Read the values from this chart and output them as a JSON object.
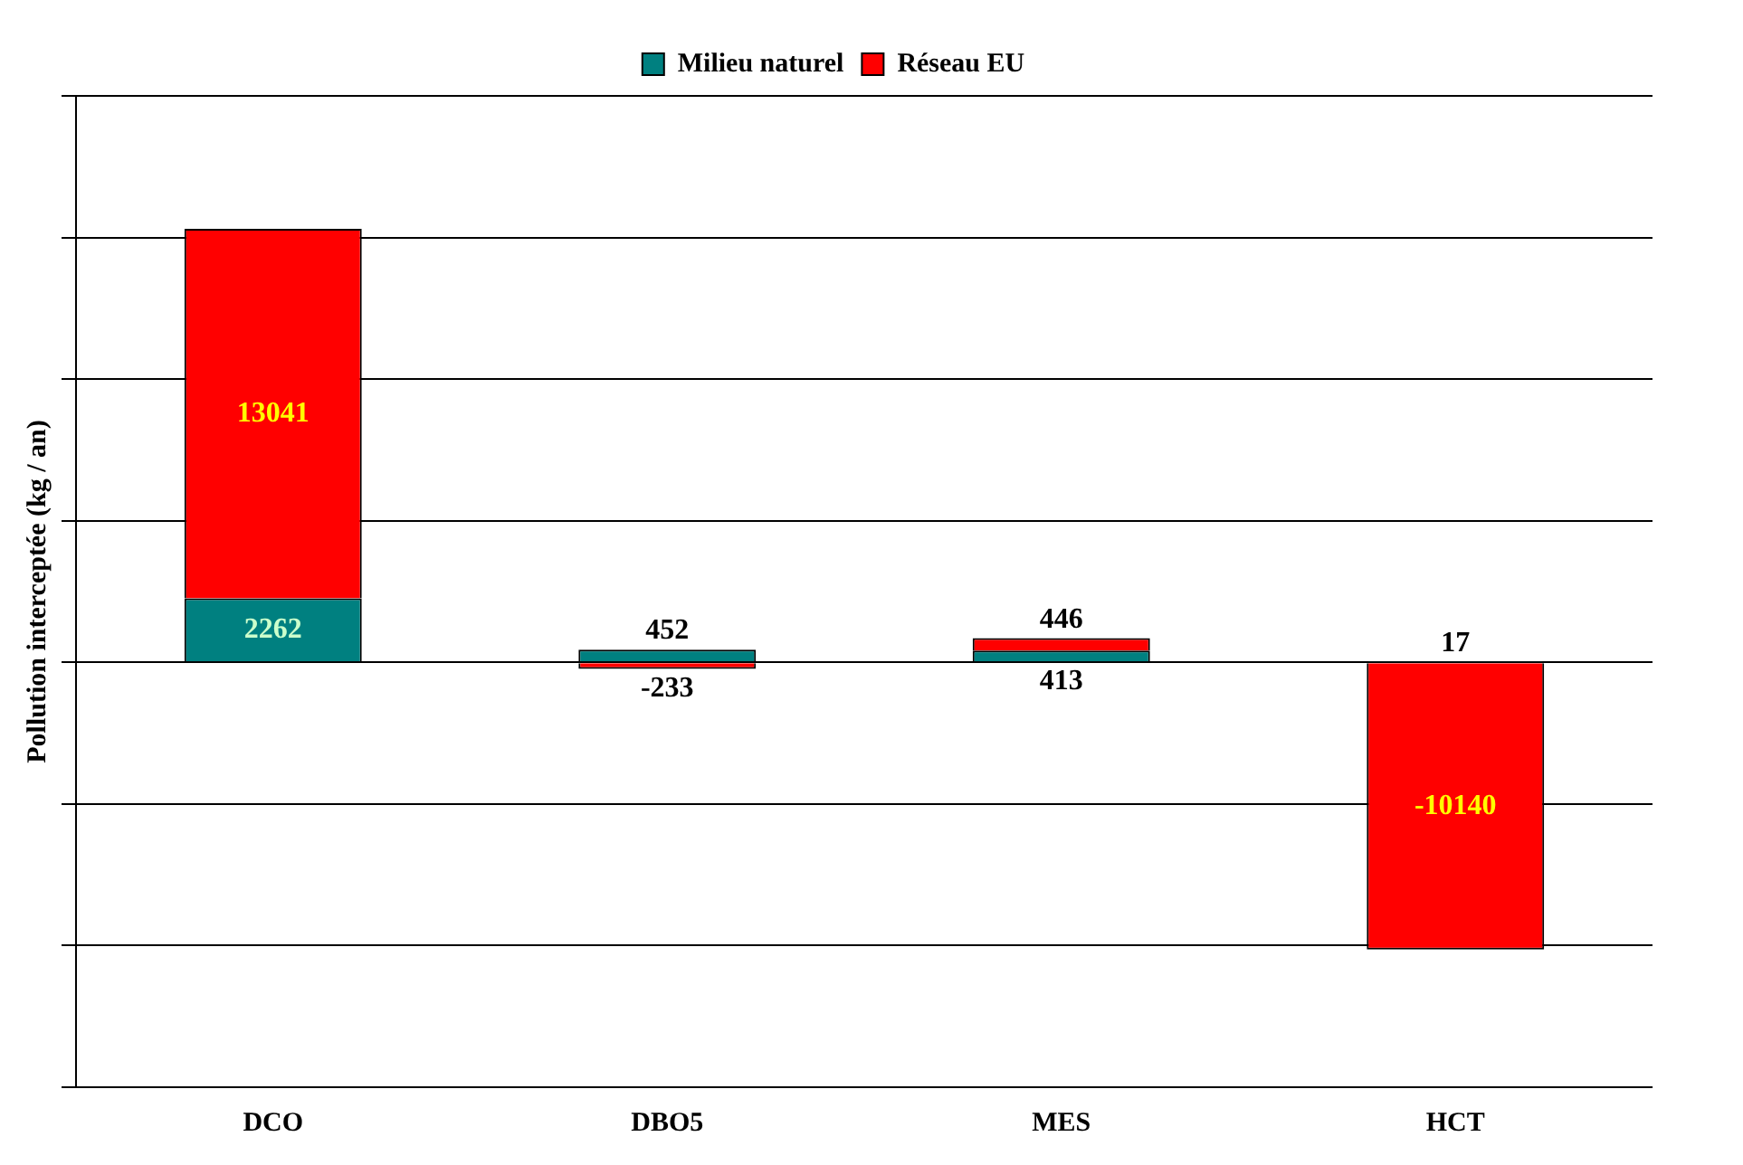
{
  "chart_data": {
    "type": "bar",
    "stacked": true,
    "ylabel": "Pollution interceptée (kg / an)",
    "categories": [
      "DCO",
      "DBO5",
      "MES",
      "HCT"
    ],
    "series": [
      {
        "name": "Milieu naturel",
        "color": "#008080",
        "values": [
          2262,
          452,
          413,
          17
        ]
      },
      {
        "name": "Réseau EU",
        "color": "#ff0000",
        "values": [
          13041,
          -233,
          446,
          -10140
        ]
      }
    ],
    "data_labels": true,
    "grid": "y",
    "legend": "top"
  }
}
